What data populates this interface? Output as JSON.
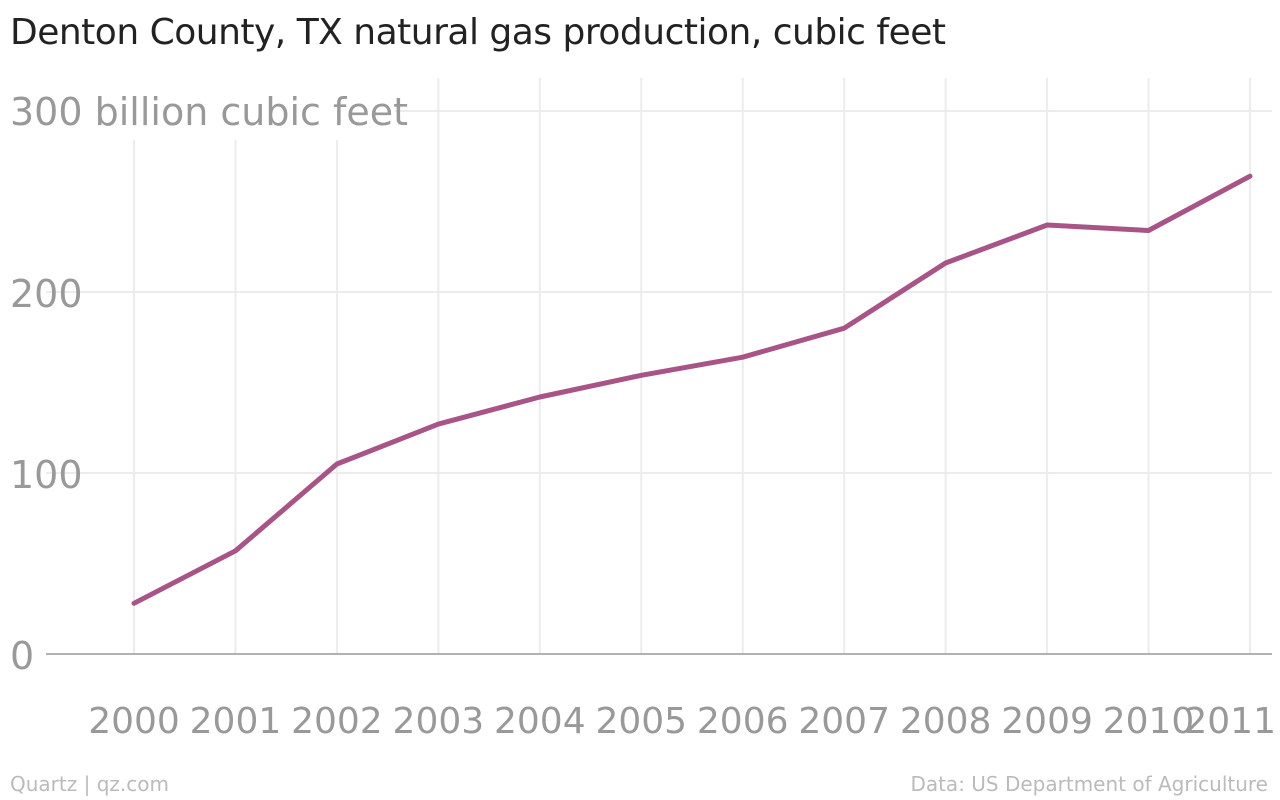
{
  "chart_data": {
    "type": "line",
    "title": "Denton County, TX natural gas production, cubic feet",
    "y_unit_label": "300 billion cubic feet",
    "x": [
      "2000",
      "2001",
      "2002",
      "2003",
      "2004",
      "2005",
      "2006",
      "2007",
      "2008",
      "2009",
      "2010",
      "2011"
    ],
    "series": [
      {
        "values": [
          28,
          57,
          105,
          127,
          142,
          154,
          164,
          180,
          216,
          237,
          234,
          264
        ]
      }
    ],
    "y_ticks": [
      "0",
      "100",
      "200"
    ],
    "y_tick_values": [
      0,
      100,
      200,
      300
    ],
    "ylim": [
      0,
      300
    ],
    "grid": true,
    "colors": {
      "line": "#a85487",
      "grid": "#ececec",
      "baseline": "#999999",
      "tick_text": "#999999"
    }
  },
  "footer": {
    "source_left": "Quartz | qz.com",
    "source_right": "Data: US Department of Agriculture"
  }
}
